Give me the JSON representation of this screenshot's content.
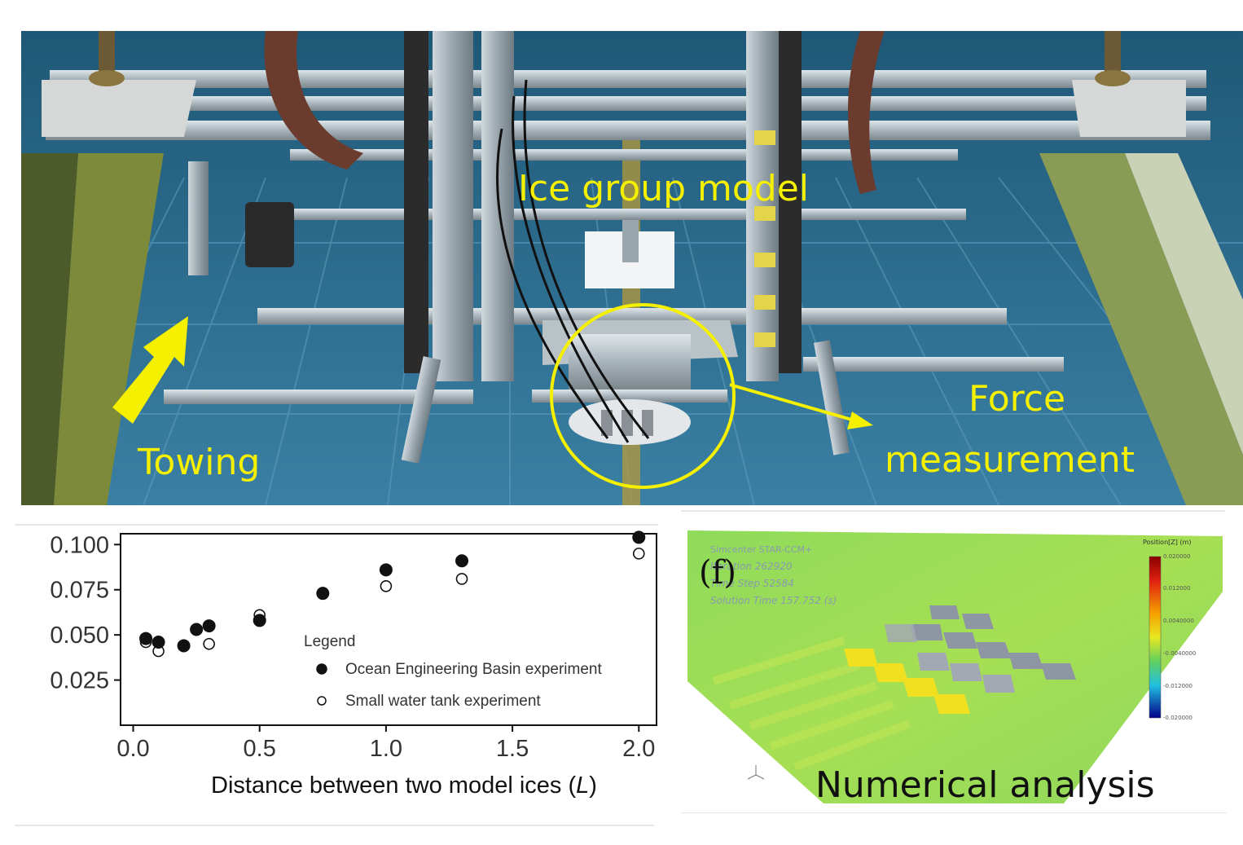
{
  "photo": {
    "labels": {
      "ice_group_model": "Ice group model",
      "force_measurement_line1": "Force",
      "force_measurement_line2": "measurement",
      "towing": "Towing"
    },
    "arrow_color": "#f5f000",
    "highlight_color": "#f5f000"
  },
  "chart_data": {
    "type": "scatter",
    "xlabel": "Distance between two model ices (L)",
    "ylabel": "",
    "xlim": [
      -0.05,
      2.07
    ],
    "ylim": [
      0.0,
      0.106
    ],
    "x_ticks": [
      "0.0",
      "0.5",
      "1.0",
      "1.5",
      "2.0"
    ],
    "y_ticks": [
      "0.025",
      "0.050",
      "0.075",
      "0.100"
    ],
    "legend": {
      "title": "Legend",
      "placement": "bottom-right"
    },
    "series": [
      {
        "name": "Ocean Engineering Basin experiment",
        "marker": "filled-circle",
        "points": [
          [
            0.05,
            0.048
          ],
          [
            0.1,
            0.046
          ],
          [
            0.2,
            0.044
          ],
          [
            0.25,
            0.053
          ],
          [
            0.3,
            0.055
          ],
          [
            0.5,
            0.058
          ],
          [
            0.75,
            0.073
          ],
          [
            1.0,
            0.086
          ],
          [
            1.3,
            0.091
          ],
          [
            2.0,
            0.104
          ]
        ]
      },
      {
        "name": "Small water tank experiment",
        "marker": "open-circle",
        "points": [
          [
            0.05,
            0.046
          ],
          [
            0.1,
            0.041
          ],
          [
            0.3,
            0.045
          ],
          [
            0.5,
            0.061
          ],
          [
            1.0,
            0.077
          ],
          [
            1.3,
            0.081
          ],
          [
            2.0,
            0.095
          ]
        ]
      }
    ]
  },
  "simulation": {
    "software": "Simcenter STAR-CCM+",
    "iteration": "Iteration 262920",
    "time_step": "Time Step 52584",
    "solution_time": "Solution Time 157.752 (s)",
    "panel_label": "(f)",
    "colorbar_title": "Position[Z] (m)",
    "colorbar_ticks": [
      "0.020000",
      "0.012000",
      "0.0040000",
      "-0.0040000",
      "-0.012000",
      "-0.020000"
    ],
    "caption": "Numerical analysis"
  }
}
